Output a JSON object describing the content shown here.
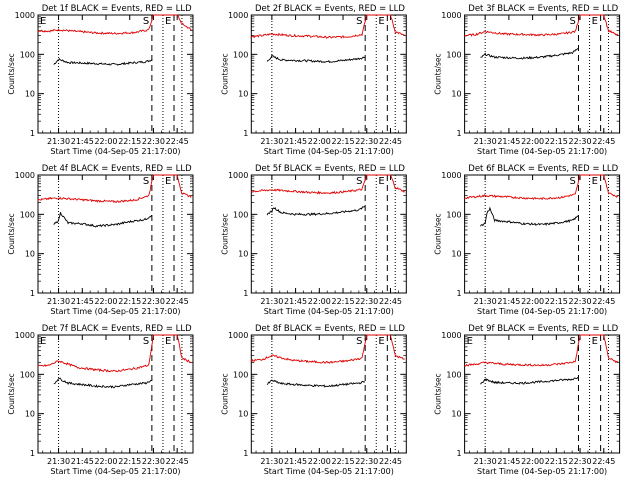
{
  "figure": {
    "start_time_label": "Start Time (04-Sep-05 21:17:00)",
    "ylabel": "Counts/sec",
    "y_ticks": [
      "1",
      "10",
      "100",
      "1000"
    ],
    "x_ticks": [
      "21:30",
      "21:45",
      "22:00",
      "22:15",
      "22:30",
      "22:45"
    ]
  },
  "colors": {
    "events": "#000000",
    "lld": "#e00000",
    "axes": "#000000",
    "background": "#ffffff"
  },
  "chart_data": [
    {
      "type": "line",
      "title": "Det 1f BLACK = Events, RED = LLD",
      "xlabel": "Start Time (04-Sep-05 21:17:00)",
      "ylabel": "Counts/sec",
      "xlim": [
        21.2833,
        22.9167
      ],
      "ylim": [
        1,
        1000
      ],
      "yscale": "log",
      "markers": [
        {
          "label": "E",
          "time": 21.2833
        },
        {
          "label": "S",
          "time": 22.4833
        },
        {
          "label": "E",
          "time": 22.7167
        }
      ],
      "series": [
        {
          "name": "Events",
          "x": [
            21.45,
            21.5,
            21.6,
            21.75,
            21.9,
            22.1,
            22.25,
            22.42,
            22.48
          ],
          "y": [
            55,
            75,
            62,
            60,
            58,
            55,
            60,
            65,
            72
          ]
        },
        {
          "name": "LLD",
          "x": [
            21.28,
            21.4,
            21.5,
            21.7,
            21.9,
            22.1,
            22.3,
            22.45,
            22.5,
            22.55,
            22.75,
            22.8,
            22.9
          ],
          "y": [
            400,
            390,
            420,
            380,
            350,
            340,
            360,
            420,
            1000,
            1000,
            1000,
            600,
            420
          ]
        }
      ]
    },
    {
      "type": "line",
      "title": "Det 2f BLACK = Events, RED = LLD",
      "xlabel": "Start Time (04-Sep-05 21:17:00)",
      "ylabel": "Counts/sec",
      "xlim": [
        21.2833,
        22.9167
      ],
      "ylim": [
        1,
        1000
      ],
      "yscale": "log",
      "markers": [
        {
          "label": "S",
          "time": 22.4833
        },
        {
          "label": "E",
          "time": 22.7167
        }
      ],
      "series": [
        {
          "name": "Events",
          "x": [
            21.45,
            21.5,
            21.6,
            21.75,
            21.9,
            22.1,
            22.25,
            22.42,
            22.48
          ],
          "y": [
            65,
            90,
            72,
            70,
            68,
            65,
            70,
            78,
            85
          ]
        },
        {
          "name": "LLD",
          "x": [
            21.28,
            21.4,
            21.5,
            21.7,
            21.9,
            22.1,
            22.3,
            22.45,
            22.5,
            22.55,
            22.75,
            22.8,
            22.9
          ],
          "y": [
            280,
            300,
            330,
            300,
            290,
            270,
            280,
            320,
            1000,
            1000,
            1000,
            380,
            300
          ]
        }
      ]
    },
    {
      "type": "line",
      "title": "Det 3f BLACK = Events, RED = LLD",
      "xlabel": "Start Time (04-Sep-05 21:17:00)",
      "ylabel": "Counts/sec",
      "xlim": [
        21.2833,
        22.9167
      ],
      "ylim": [
        1,
        1000
      ],
      "yscale": "log",
      "markers": [
        {
          "label": "S",
          "time": 22.4833
        },
        {
          "label": "E",
          "time": 22.7167
        }
      ],
      "series": [
        {
          "name": "Events",
          "x": [
            21.45,
            21.5,
            21.6,
            21.75,
            21.9,
            22.1,
            22.25,
            22.42,
            22.48
          ],
          "y": [
            80,
            100,
            85,
            82,
            80,
            85,
            95,
            110,
            140
          ]
        },
        {
          "name": "LLD",
          "x": [
            21.28,
            21.4,
            21.5,
            21.7,
            21.9,
            22.1,
            22.3,
            22.45,
            22.5,
            22.55,
            22.75,
            22.8,
            22.9
          ],
          "y": [
            300,
            320,
            380,
            330,
            320,
            310,
            330,
            380,
            1000,
            1000,
            1000,
            400,
            300
          ]
        }
      ]
    },
    {
      "type": "line",
      "title": "Det 4f BLACK = Events, RED = LLD",
      "xlabel": "Start Time (04-Sep-05 21:17:00)",
      "ylabel": "Counts/sec",
      "xlim": [
        21.2833,
        22.9167
      ],
      "ylim": [
        1,
        1000
      ],
      "yscale": "log",
      "markers": [
        {
          "label": "S",
          "time": 22.4833
        },
        {
          "label": "E",
          "time": 22.7167
        }
      ],
      "series": [
        {
          "name": "Events",
          "x": [
            21.45,
            21.5,
            21.52,
            21.6,
            21.75,
            21.9,
            22.1,
            22.25,
            22.42,
            22.48
          ],
          "y": [
            55,
            70,
            110,
            60,
            58,
            50,
            55,
            65,
            75,
            95
          ]
        },
        {
          "name": "LLD",
          "x": [
            21.28,
            21.4,
            21.5,
            21.7,
            21.9,
            22.1,
            22.3,
            22.45,
            22.5,
            22.55,
            22.75,
            22.8,
            22.9
          ],
          "y": [
            230,
            250,
            260,
            240,
            220,
            210,
            230,
            300,
            1000,
            1000,
            1000,
            340,
            280
          ]
        }
      ]
    },
    {
      "type": "line",
      "title": "Det 5f BLACK = Events, RED = LLD",
      "xlabel": "Start Time (04-Sep-05 21:17:00)",
      "ylabel": "Counts/sec",
      "xlim": [
        21.2833,
        22.9167
      ],
      "ylim": [
        1,
        1000
      ],
      "yscale": "log",
      "markers": [
        {
          "label": "S",
          "time": 22.4833
        },
        {
          "label": "E",
          "time": 22.7167
        }
      ],
      "series": [
        {
          "name": "Events",
          "x": [
            21.45,
            21.5,
            21.52,
            21.6,
            21.75,
            21.9,
            22.1,
            22.25,
            22.42,
            22.48
          ],
          "y": [
            100,
            120,
            150,
            110,
            100,
            100,
            105,
            115,
            130,
            160
          ]
        },
        {
          "name": "LLD",
          "x": [
            21.28,
            21.4,
            21.5,
            21.7,
            21.9,
            22.1,
            22.3,
            22.45,
            22.5,
            22.55,
            22.75,
            22.8,
            22.9
          ],
          "y": [
            380,
            400,
            420,
            390,
            360,
            350,
            380,
            430,
            1000,
            1000,
            1000,
            480,
            380
          ]
        }
      ]
    },
    {
      "type": "line",
      "title": "Det 6f BLACK = Events, RED = LLD",
      "xlabel": "Start Time (04-Sep-05 21:17:00)",
      "ylabel": "Counts/sec",
      "xlim": [
        21.2833,
        22.9167
      ],
      "ylim": [
        1,
        1000
      ],
      "yscale": "log",
      "markers": [
        {
          "label": "S",
          "time": 22.4833
        },
        {
          "label": "E",
          "time": 22.7167
        }
      ],
      "series": [
        {
          "name": "Events",
          "x": [
            21.45,
            21.5,
            21.52,
            21.55,
            21.6,
            21.75,
            21.9,
            22.1,
            22.25,
            22.42,
            22.48
          ],
          "y": [
            50,
            60,
            110,
            140,
            70,
            65,
            58,
            55,
            60,
            70,
            90
          ]
        },
        {
          "name": "LLD",
          "x": [
            21.28,
            21.4,
            21.5,
            21.7,
            21.9,
            22.1,
            22.3,
            22.45,
            22.5,
            22.55,
            22.75,
            22.8,
            22.9
          ],
          "y": [
            260,
            280,
            300,
            280,
            260,
            250,
            270,
            320,
            1000,
            1000,
            1000,
            350,
            280
          ]
        }
      ]
    },
    {
      "type": "line",
      "title": "Det 7f BLACK = Events, RED = LLD",
      "xlabel": "Start Time (04-Sep-05 21:17:00)",
      "ylabel": "Counts/sec",
      "xlim": [
        21.2833,
        22.9167
      ],
      "ylim": [
        1,
        1000
      ],
      "yscale": "log",
      "markers": [
        {
          "label": "E",
          "time": 21.2833
        },
        {
          "label": "S",
          "time": 22.4833
        },
        {
          "label": "E",
          "time": 22.7167
        }
      ],
      "series": [
        {
          "name": "Events",
          "x": [
            21.45,
            21.5,
            21.6,
            21.75,
            21.9,
            22.1,
            22.25,
            22.42,
            22.48
          ],
          "y": [
            55,
            80,
            60,
            55,
            50,
            48,
            55,
            60,
            70
          ]
        },
        {
          "name": "LLD",
          "x": [
            21.28,
            21.4,
            21.5,
            21.7,
            21.9,
            22.1,
            22.3,
            22.45,
            22.5,
            22.55,
            22.75,
            22.8,
            22.9
          ],
          "y": [
            160,
            170,
            220,
            150,
            130,
            120,
            140,
            170,
            1000,
            1000,
            1000,
            260,
            200
          ]
        }
      ]
    },
    {
      "type": "line",
      "title": "Det 8f BLACK = Events, RED = LLD",
      "xlabel": "Start Time (04-Sep-05 21:17:00)",
      "ylabel": "Counts/sec",
      "xlim": [
        21.2833,
        22.9167
      ],
      "ylim": [
        1,
        1000
      ],
      "yscale": "log",
      "markers": [
        {
          "label": "S",
          "time": 22.4833
        },
        {
          "label": "E",
          "time": 22.7167
        }
      ],
      "series": [
        {
          "name": "Events",
          "x": [
            21.45,
            21.5,
            21.6,
            21.75,
            21.9,
            22.1,
            22.25,
            22.42,
            22.48
          ],
          "y": [
            55,
            70,
            58,
            55,
            52,
            50,
            55,
            60,
            65
          ]
        },
        {
          "name": "LLD",
          "x": [
            21.28,
            21.4,
            21.5,
            21.7,
            21.9,
            22.1,
            22.3,
            22.45,
            22.5,
            22.55,
            22.75,
            22.8,
            22.9
          ],
          "y": [
            220,
            240,
            300,
            230,
            210,
            200,
            220,
            260,
            1000,
            1000,
            1000,
            300,
            240
          ]
        }
      ]
    },
    {
      "type": "line",
      "title": "Det 9f BLACK = Events, RED = LLD",
      "xlabel": "Start Time (04-Sep-05 21:17:00)",
      "ylabel": "Counts/sec",
      "xlim": [
        21.2833,
        22.9167
      ],
      "ylim": [
        1,
        1000
      ],
      "yscale": "log",
      "markers": [
        {
          "label": "E",
          "time": 21.2833
        },
        {
          "label": "S",
          "time": 22.4833
        },
        {
          "label": "E",
          "time": 22.7167
        }
      ],
      "series": [
        {
          "name": "Events",
          "x": [
            21.45,
            21.5,
            21.6,
            21.75,
            21.9,
            22.1,
            22.25,
            22.42,
            22.48
          ],
          "y": [
            55,
            75,
            62,
            60,
            60,
            65,
            70,
            75,
            85
          ]
        },
        {
          "name": "LLD",
          "x": [
            21.28,
            21.4,
            21.5,
            21.7,
            21.9,
            22.1,
            22.3,
            22.45,
            22.5,
            22.55,
            22.75,
            22.8,
            22.9
          ],
          "y": [
            170,
            180,
            200,
            180,
            175,
            170,
            185,
            210,
            1000,
            1000,
            1000,
            260,
            200
          ]
        }
      ]
    }
  ]
}
